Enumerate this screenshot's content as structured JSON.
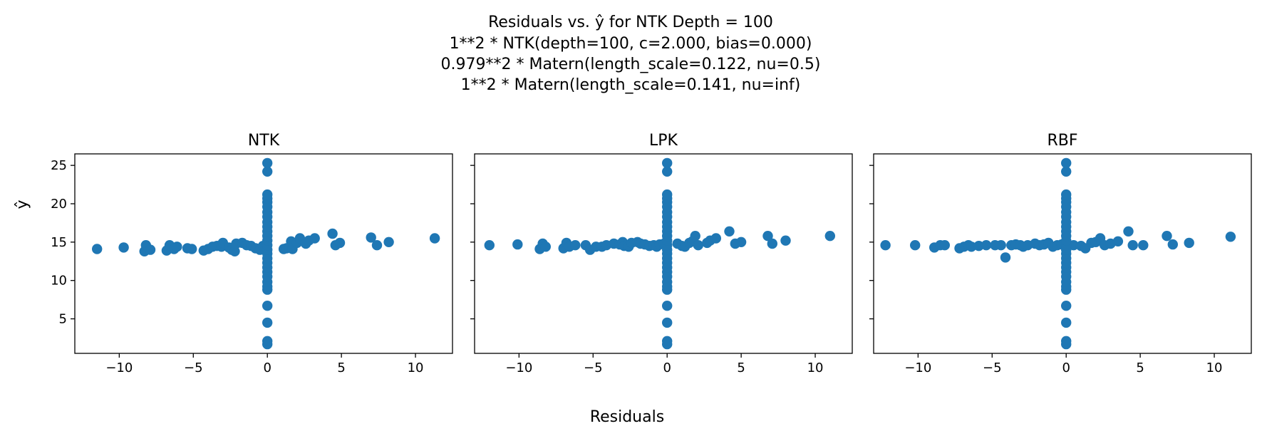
{
  "figure": {
    "title_lines": [
      "Residuals vs. ŷ for NTK Depth = 100",
      "1**2 * NTK(depth=100, c=2.000, bias=0.000)",
      "0.979**2 * Matern(length_scale=0.122, nu=0.5)",
      "1**2 * Matern(length_scale=0.141, nu=inf)"
    ],
    "xlabel": "Residuals",
    "ylabel": "ŷ",
    "marker_color": "#1f77b4"
  },
  "chart_data": [
    {
      "type": "scatter",
      "title": "NTK",
      "xlim": [
        -13,
        12.5
      ],
      "ylim": [
        0.5,
        26.5
      ],
      "xticks": [
        -10,
        -5,
        0,
        5,
        10
      ],
      "yticks": [
        5,
        10,
        15,
        20,
        25
      ],
      "ytick_labels_visible": true,
      "grid": false,
      "points": [
        [
          -11.5,
          14.1
        ],
        [
          -9.7,
          14.3
        ],
        [
          -8.3,
          13.8
        ],
        [
          -8.2,
          14.6
        ],
        [
          -7.9,
          14.0
        ],
        [
          -6.8,
          13.9
        ],
        [
          -6.6,
          14.6
        ],
        [
          -6.3,
          14.1
        ],
        [
          -6.1,
          14.4
        ],
        [
          -5.4,
          14.2
        ],
        [
          -5.1,
          14.1
        ],
        [
          -4.3,
          13.9
        ],
        [
          -4.0,
          14.1
        ],
        [
          -3.7,
          14.4
        ],
        [
          -3.4,
          14.5
        ],
        [
          -3.1,
          14.4
        ],
        [
          -3.0,
          14.9
        ],
        [
          -2.6,
          14.3
        ],
        [
          -2.4,
          14.0
        ],
        [
          -2.2,
          13.8
        ],
        [
          -2.1,
          14.8
        ],
        [
          -1.7,
          14.9
        ],
        [
          -1.4,
          14.6
        ],
        [
          -1.1,
          14.5
        ],
        [
          -0.8,
          14.2
        ],
        [
          -0.5,
          14.0
        ],
        [
          -0.3,
          14.5
        ],
        [
          -0.1,
          14.3
        ],
        [
          1.1,
          14.1
        ],
        [
          1.3,
          14.2
        ],
        [
          1.5,
          14.3
        ],
        [
          1.6,
          15.1
        ],
        [
          1.7,
          14.1
        ],
        [
          2.0,
          14.9
        ],
        [
          2.2,
          15.5
        ],
        [
          2.6,
          14.8
        ],
        [
          2.8,
          15.2
        ],
        [
          3.2,
          15.5
        ],
        [
          4.4,
          16.1
        ],
        [
          4.6,
          14.6
        ],
        [
          4.9,
          14.9
        ],
        [
          7.0,
          15.6
        ],
        [
          7.4,
          14.6
        ],
        [
          8.2,
          15.0
        ],
        [
          11.3,
          15.5
        ],
        [
          0,
          1.7
        ],
        [
          0,
          2.1
        ],
        [
          0,
          4.5
        ],
        [
          0,
          6.7
        ],
        [
          0,
          8.8
        ],
        [
          0,
          9.2
        ],
        [
          0,
          9.8
        ],
        [
          0,
          10.5
        ],
        [
          0,
          11.1
        ],
        [
          0,
          11.7
        ],
        [
          0,
          12.3
        ],
        [
          0,
          12.9
        ],
        [
          0,
          13.5
        ],
        [
          0,
          14.0
        ],
        [
          0,
          14.6
        ],
        [
          0,
          15.2
        ],
        [
          0,
          15.8
        ],
        [
          0,
          16.4
        ],
        [
          0,
          17.0
        ],
        [
          0,
          17.6
        ],
        [
          0,
          18.3
        ],
        [
          0,
          18.9
        ],
        [
          0,
          19.6
        ],
        [
          0,
          20.2
        ],
        [
          0,
          20.7
        ],
        [
          0,
          21.2
        ],
        [
          0,
          24.2
        ],
        [
          0,
          25.3
        ]
      ]
    },
    {
      "type": "scatter",
      "title": "LPK",
      "xlim": [
        -13,
        12.5
      ],
      "ylim": [
        0.5,
        26.5
      ],
      "xticks": [
        -10,
        -5,
        0,
        5,
        10
      ],
      "yticks": [
        5,
        10,
        15,
        20,
        25
      ],
      "ytick_labels_visible": false,
      "grid": false,
      "points": [
        [
          -12.0,
          14.6
        ],
        [
          -10.1,
          14.7
        ],
        [
          -8.6,
          14.1
        ],
        [
          -8.4,
          14.8
        ],
        [
          -8.2,
          14.4
        ],
        [
          -7.0,
          14.2
        ],
        [
          -6.8,
          14.9
        ],
        [
          -6.6,
          14.4
        ],
        [
          -6.2,
          14.6
        ],
        [
          -5.5,
          14.6
        ],
        [
          -5.2,
          14.0
        ],
        [
          -4.8,
          14.4
        ],
        [
          -4.4,
          14.4
        ],
        [
          -4.1,
          14.6
        ],
        [
          -3.6,
          14.8
        ],
        [
          -3.2,
          14.7
        ],
        [
          -3.0,
          15.0
        ],
        [
          -2.9,
          14.5
        ],
        [
          -2.6,
          14.4
        ],
        [
          -2.4,
          14.9
        ],
        [
          -2.0,
          15.0
        ],
        [
          -1.8,
          14.8
        ],
        [
          -1.5,
          14.7
        ],
        [
          -1.2,
          14.5
        ],
        [
          -0.9,
          14.6
        ],
        [
          -0.7,
          14.4
        ],
        [
          -0.5,
          14.7
        ],
        [
          -0.2,
          14.8
        ],
        [
          0.7,
          14.8
        ],
        [
          1.0,
          14.5
        ],
        [
          1.2,
          14.4
        ],
        [
          1.5,
          14.9
        ],
        [
          1.7,
          15.1
        ],
        [
          1.9,
          15.8
        ],
        [
          2.1,
          14.6
        ],
        [
          2.7,
          14.9
        ],
        [
          2.9,
          15.2
        ],
        [
          3.3,
          15.5
        ],
        [
          4.2,
          16.4
        ],
        [
          4.6,
          14.8
        ],
        [
          5.0,
          15.0
        ],
        [
          6.8,
          15.8
        ],
        [
          7.1,
          14.8
        ],
        [
          8.0,
          15.2
        ],
        [
          11.0,
          15.8
        ],
        [
          0,
          1.7
        ],
        [
          0,
          2.1
        ],
        [
          0,
          4.5
        ],
        [
          0,
          6.7
        ],
        [
          0,
          8.8
        ],
        [
          0,
          9.2
        ],
        [
          0,
          9.8
        ],
        [
          0,
          10.5
        ],
        [
          0,
          11.1
        ],
        [
          0,
          11.7
        ],
        [
          0,
          12.3
        ],
        [
          0,
          12.9
        ],
        [
          0,
          13.5
        ],
        [
          0,
          14.0
        ],
        [
          0,
          14.6
        ],
        [
          0,
          15.2
        ],
        [
          0,
          15.8
        ],
        [
          0,
          16.4
        ],
        [
          0,
          17.0
        ],
        [
          0,
          17.6
        ],
        [
          0,
          18.3
        ],
        [
          0,
          18.9
        ],
        [
          0,
          19.6
        ],
        [
          0,
          20.2
        ],
        [
          0,
          20.7
        ],
        [
          0,
          21.2
        ],
        [
          0,
          24.2
        ],
        [
          0,
          25.3
        ]
      ]
    },
    {
      "type": "scatter",
      "title": "RBF",
      "xlim": [
        -13,
        12.5
      ],
      "ylim": [
        0.5,
        26.5
      ],
      "xticks": [
        -10,
        -5,
        0,
        5,
        10
      ],
      "yticks": [
        5,
        10,
        15,
        20,
        25
      ],
      "ytick_labels_visible": false,
      "grid": false,
      "points": [
        [
          -12.2,
          14.6
        ],
        [
          -10.2,
          14.6
        ],
        [
          -8.9,
          14.3
        ],
        [
          -8.5,
          14.6
        ],
        [
          -8.2,
          14.6
        ],
        [
          -7.2,
          14.2
        ],
        [
          -6.9,
          14.4
        ],
        [
          -6.6,
          14.6
        ],
        [
          -6.4,
          14.4
        ],
        [
          -5.9,
          14.5
        ],
        [
          -5.4,
          14.6
        ],
        [
          -4.8,
          14.6
        ],
        [
          -4.4,
          14.6
        ],
        [
          -4.1,
          13.0
        ],
        [
          -3.7,
          14.6
        ],
        [
          -3.4,
          14.7
        ],
        [
          -3.1,
          14.6
        ],
        [
          -2.9,
          14.4
        ],
        [
          -2.6,
          14.6
        ],
        [
          -2.1,
          14.8
        ],
        [
          -1.8,
          14.6
        ],
        [
          -1.5,
          14.7
        ],
        [
          -1.2,
          14.9
        ],
        [
          -0.9,
          14.4
        ],
        [
          -0.6,
          14.6
        ],
        [
          -0.3,
          14.7
        ],
        [
          0.5,
          14.6
        ],
        [
          1.0,
          14.5
        ],
        [
          1.3,
          14.2
        ],
        [
          1.7,
          14.9
        ],
        [
          2.0,
          15.0
        ],
        [
          2.3,
          15.5
        ],
        [
          2.6,
          14.6
        ],
        [
          3.0,
          14.8
        ],
        [
          3.5,
          15.1
        ],
        [
          4.2,
          16.4
        ],
        [
          4.5,
          14.6
        ],
        [
          5.2,
          14.6
        ],
        [
          6.8,
          15.8
        ],
        [
          7.2,
          14.7
        ],
        [
          8.3,
          14.9
        ],
        [
          11.1,
          15.7
        ],
        [
          0,
          1.7
        ],
        [
          0,
          2.1
        ],
        [
          0,
          4.5
        ],
        [
          0,
          6.7
        ],
        [
          0,
          8.8
        ],
        [
          0,
          9.2
        ],
        [
          0,
          9.8
        ],
        [
          0,
          10.5
        ],
        [
          0,
          11.1
        ],
        [
          0,
          11.7
        ],
        [
          0,
          12.3
        ],
        [
          0,
          12.9
        ],
        [
          0,
          13.5
        ],
        [
          0,
          14.0
        ],
        [
          0,
          14.6
        ],
        [
          0,
          15.2
        ],
        [
          0,
          15.8
        ],
        [
          0,
          16.4
        ],
        [
          0,
          17.0
        ],
        [
          0,
          17.6
        ],
        [
          0,
          18.3
        ],
        [
          0,
          18.9
        ],
        [
          0,
          19.6
        ],
        [
          0,
          20.2
        ],
        [
          0,
          20.7
        ],
        [
          0,
          21.2
        ],
        [
          0,
          24.2
        ],
        [
          0,
          25.3
        ]
      ]
    }
  ]
}
